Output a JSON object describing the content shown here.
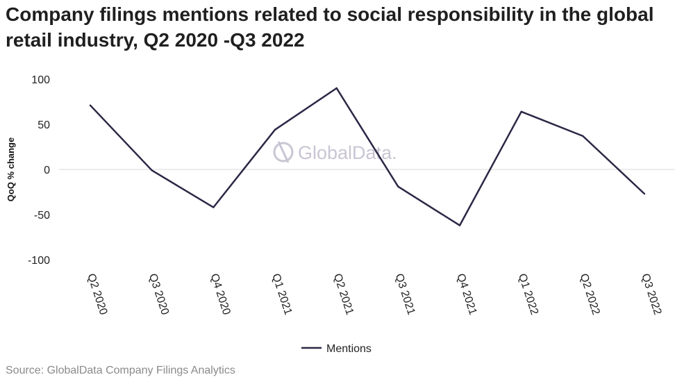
{
  "title": "Company filings mentions related to social responsibility in the global retail industry, Q2 2020 -Q3 2022",
  "source": "Source: GlobalData Company Filings Analytics",
  "watermark": "GlobalData.",
  "colors": {
    "line": "#2b2745",
    "zero_line": "#d9d9d9",
    "watermark": "#c9c5d3"
  },
  "chart_data": {
    "type": "line",
    "categories": [
      "Q2 2020",
      "Q3 2020",
      "Q4 2020",
      "Q1 2021",
      "Q2 2021",
      "Q3 2021",
      "Q4 2021",
      "Q1 2022",
      "Q2 2022",
      "Q3 2022"
    ],
    "series": [
      {
        "name": "Mentions",
        "values": [
          71,
          -1,
          -42,
          44,
          90,
          -19,
          -62,
          64,
          37,
          -27
        ]
      }
    ],
    "ylabel": "QoQ % change",
    "xlabel": "",
    "ylim": [
      -100,
      100
    ],
    "yticks": [
      100,
      50,
      0,
      -50,
      -100
    ],
    "legend": "bottom-center",
    "grid": false
  }
}
